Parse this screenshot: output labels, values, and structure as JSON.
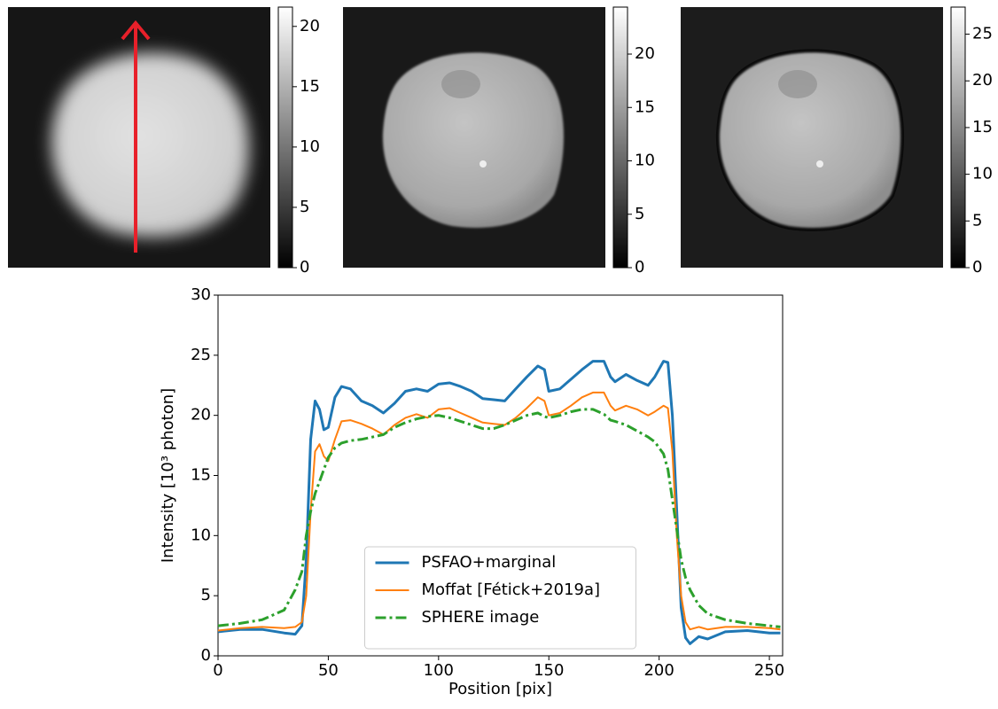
{
  "chart_data": [
    {
      "type": "image",
      "ylim": [
        0,
        21.6
      ],
      "yticks": [
        0,
        5,
        10,
        15,
        20
      ]
    },
    {
      "type": "image",
      "ylim": [
        0,
        24.4
      ],
      "yticks": [
        0,
        5,
        10,
        15,
        20
      ]
    },
    {
      "type": "image",
      "ylim": [
        0,
        27.9
      ],
      "yticks": [
        0,
        5,
        10,
        15,
        20,
        25
      ]
    },
    {
      "type": "line",
      "xlabel": "Position [pix]",
      "ylabel": "Intensity [10³ photon]",
      "xlim": [
        0,
        256
      ],
      "ylim": [
        0,
        30
      ],
      "xticks": [
        0,
        50,
        100,
        150,
        200,
        250
      ],
      "yticks": [
        0,
        5,
        10,
        15,
        20,
        25,
        30
      ],
      "legend": "lower center",
      "x": [
        0,
        10,
        20,
        30,
        35,
        38,
        40,
        42,
        44,
        46,
        48,
        50,
        53,
        56,
        60,
        65,
        70,
        75,
        80,
        85,
        90,
        95,
        100,
        105,
        110,
        115,
        120,
        125,
        130,
        135,
        140,
        145,
        148,
        150,
        155,
        160,
        165,
        170,
        175,
        178,
        180,
        185,
        190,
        195,
        198,
        202,
        204,
        206,
        208,
        210,
        212,
        214,
        218,
        222,
        230,
        240,
        250,
        255
      ],
      "series": [
        {
          "name": "PSFAO+marginal",
          "color": "#1f77b4",
          "width": 3,
          "linestyle": "solid",
          "values": [
            2.0,
            2.2,
            2.2,
            1.9,
            1.8,
            2.5,
            8,
            18,
            21.2,
            20.5,
            18.8,
            19,
            21.5,
            22.4,
            22.2,
            21.2,
            20.8,
            20.2,
            21,
            22,
            22.2,
            22,
            22.6,
            22.7,
            22.4,
            22,
            21.4,
            21.3,
            21.2,
            22.2,
            23.2,
            24.1,
            23.8,
            22,
            22.2,
            23,
            23.8,
            24.5,
            24.5,
            23.2,
            22.8,
            23.4,
            22.9,
            22.5,
            23.2,
            24.5,
            24.4,
            20,
            12,
            4,
            1.5,
            1.0,
            1.6,
            1.4,
            2.0,
            2.1,
            1.9,
            1.9
          ]
        },
        {
          "name": "Moffat [Fétick+2019a]",
          "color": "#ff7f0e",
          "width": 2,
          "linestyle": "solid",
          "values": [
            2.1,
            2.3,
            2.4,
            2.3,
            2.4,
            2.8,
            5,
            12,
            17,
            17.6,
            16.6,
            16.2,
            18,
            19.5,
            19.6,
            19.3,
            18.9,
            18.4,
            19.2,
            19.8,
            20.1,
            19.8,
            20.5,
            20.6,
            20.2,
            19.8,
            19.4,
            19.3,
            19.2,
            19.8,
            20.6,
            21.5,
            21.2,
            20,
            20.2,
            20.8,
            21.5,
            21.9,
            21.9,
            20.8,
            20.4,
            20.8,
            20.5,
            20,
            20.3,
            20.8,
            20.6,
            17,
            10,
            5,
            2.8,
            2.2,
            2.4,
            2.2,
            2.4,
            2.4,
            2.3,
            2.2
          ]
        },
        {
          "name": "SPHERE image",
          "color": "#2ca02c",
          "width": 3,
          "linestyle": "dashdot",
          "values": [
            2.5,
            2.7,
            3.0,
            3.8,
            5.5,
            7,
            10,
            12,
            13.5,
            14.5,
            15.5,
            16.5,
            17.3,
            17.7,
            17.9,
            18.0,
            18.2,
            18.4,
            19,
            19.4,
            19.7,
            19.9,
            20,
            19.8,
            19.5,
            19.2,
            18.9,
            18.9,
            19.2,
            19.6,
            20,
            20.2,
            19.9,
            19.8,
            20,
            20.3,
            20.5,
            20.5,
            20.1,
            19.6,
            19.5,
            19.2,
            18.7,
            18.2,
            17.8,
            16.8,
            15.5,
            13,
            10.5,
            8,
            6.5,
            5.5,
            4.2,
            3.5,
            3.0,
            2.7,
            2.5,
            2.4
          ]
        }
      ]
    }
  ]
}
